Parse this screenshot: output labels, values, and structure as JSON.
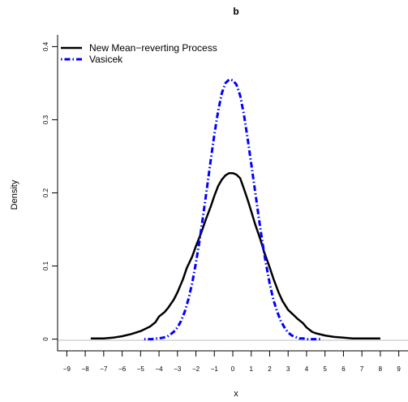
{
  "chart_data": {
    "type": "line",
    "title": "b",
    "xlabel": "x",
    "ylabel": "Density",
    "xlim": [
      -9.5,
      9.5
    ],
    "ylim": [
      -0.016,
      0.416
    ],
    "xticks": [
      -9,
      -8,
      -7,
      -6,
      -5,
      -4,
      -3,
      -2,
      -1,
      0,
      1,
      2,
      3,
      4,
      5,
      6,
      7,
      8,
      9
    ],
    "xtick_labels": [
      "−9",
      "−8",
      "−7",
      "−6",
      "−5",
      "−4",
      "−3",
      "−2",
      "−1",
      "0",
      "1",
      "2",
      "3",
      "4",
      "5",
      "6",
      "7",
      "8",
      "9"
    ],
    "yticks": [
      0,
      0.1,
      0.2,
      0.3,
      0.4
    ],
    "ytick_labels": [
      "0",
      "0.1",
      "0.2",
      "0.3",
      "0.4"
    ],
    "legend_position": "top-left",
    "zero_line": true,
    "series": [
      {
        "name": "New Mean−reverting Process",
        "color": "#000000",
        "dash": "solid",
        "x": [
          -7.7,
          -7.0,
          -6.5,
          -6.0,
          -5.5,
          -5.0,
          -4.5,
          -4.2,
          -4.0,
          -3.7,
          -3.5,
          -3.2,
          -3.0,
          -2.7,
          -2.5,
          -2.2,
          -2.0,
          -1.7,
          -1.5,
          -1.2,
          -1.0,
          -0.8,
          -0.6,
          -0.4,
          -0.2,
          0.0,
          0.2,
          0.4,
          0.6,
          0.8,
          1.0,
          1.2,
          1.5,
          1.7,
          2.0,
          2.2,
          2.5,
          2.7,
          3.0,
          3.3,
          3.5,
          3.8,
          4.0,
          4.3,
          4.5,
          5.0,
          5.5,
          6.0,
          6.5,
          7.0,
          8.0
        ],
        "y": [
          0.001,
          0.001,
          0.002,
          0.004,
          0.007,
          0.011,
          0.017,
          0.023,
          0.031,
          0.037,
          0.043,
          0.054,
          0.064,
          0.082,
          0.097,
          0.113,
          0.127,
          0.146,
          0.161,
          0.181,
          0.196,
          0.209,
          0.218,
          0.224,
          0.227,
          0.227,
          0.225,
          0.22,
          0.206,
          0.191,
          0.175,
          0.158,
          0.136,
          0.119,
          0.098,
          0.083,
          0.063,
          0.052,
          0.04,
          0.033,
          0.028,
          0.022,
          0.016,
          0.01,
          0.008,
          0.005,
          0.003,
          0.002,
          0.001,
          0.001,
          0.001
        ]
      },
      {
        "name": "Vasicek",
        "color": "#0000ff",
        "dash": "dotdash",
        "x": [
          -4.8,
          -4.6,
          -4.4,
          -4.2,
          -4.0,
          -3.8,
          -3.6,
          -3.4,
          -3.2,
          -3.0,
          -2.8,
          -2.6,
          -2.4,
          -2.2,
          -2.0,
          -1.8,
          -1.6,
          -1.4,
          -1.2,
          -1.0,
          -0.8,
          -0.6,
          -0.4,
          -0.2,
          0.0,
          0.2,
          0.4,
          0.6,
          0.8,
          1.0,
          1.2,
          1.4,
          1.6,
          1.8,
          2.0,
          2.2,
          2.4,
          2.6,
          2.8,
          3.0,
          3.2,
          3.4,
          3.6,
          3.8,
          4.0,
          4.2,
          4.4,
          4.6,
          4.8
        ],
        "y": [
          0.0,
          0.0,
          0.0,
          0.001,
          0.001,
          0.002,
          0.003,
          0.006,
          0.01,
          0.016,
          0.025,
          0.038,
          0.055,
          0.077,
          0.104,
          0.135,
          0.17,
          0.207,
          0.244,
          0.28,
          0.311,
          0.336,
          0.35,
          0.355,
          0.354,
          0.348,
          0.333,
          0.308,
          0.275,
          0.24,
          0.204,
          0.168,
          0.133,
          0.103,
          0.076,
          0.054,
          0.038,
          0.025,
          0.016,
          0.009,
          0.005,
          0.003,
          0.001,
          0.001,
          0.0,
          0.0,
          0.0,
          0.0,
          0.0
        ]
      }
    ]
  }
}
